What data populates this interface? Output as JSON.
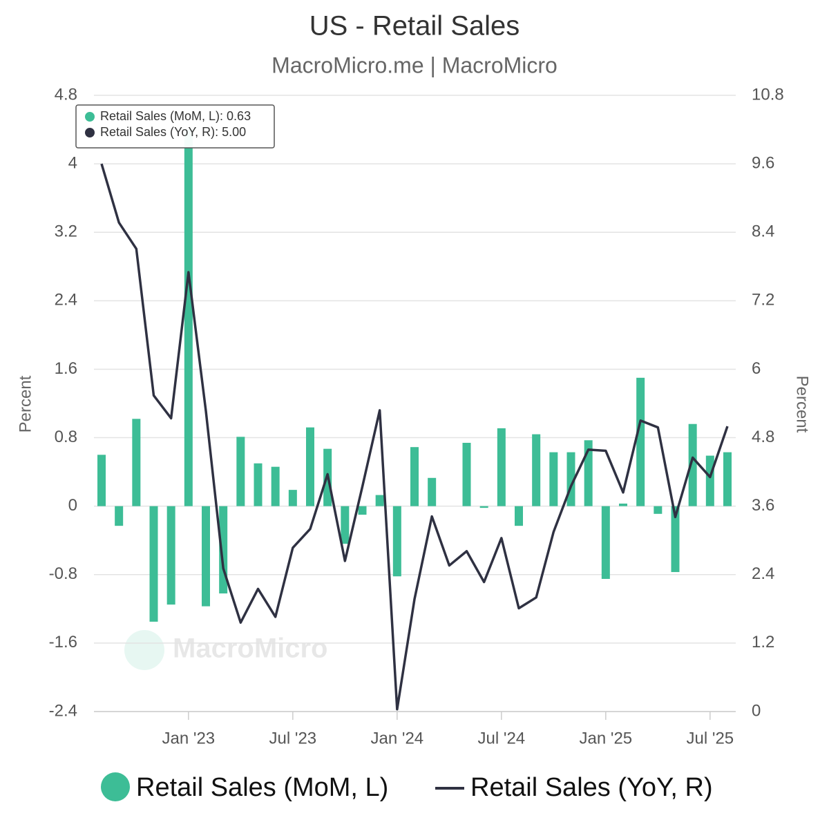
{
  "chart_data": {
    "type": "bar-line",
    "title": "US - Retail Sales",
    "subtitle": "MacroMicro.me | MacroMicro",
    "watermark": "MacroMicro",
    "y_label": "Percent",
    "y2_label": "Percent",
    "x": [
      "2022-08",
      "2022-09",
      "2022-10",
      "2022-11",
      "2022-12",
      "2023-01",
      "2023-02",
      "2023-03",
      "2023-04",
      "2023-05",
      "2023-06",
      "2023-07",
      "2023-08",
      "2023-09",
      "2023-10",
      "2023-11",
      "2023-12",
      "2024-01",
      "2024-02",
      "2024-03",
      "2024-04",
      "2024-05",
      "2024-06",
      "2024-07",
      "2024-08",
      "2024-09",
      "2024-10",
      "2024-11",
      "2024-12",
      "2025-01",
      "2025-02",
      "2025-03",
      "2025-04",
      "2025-05",
      "2025-06",
      "2025-07",
      "2025-08"
    ],
    "xticks": [
      {
        "value": "2023-01",
        "label": "Jan '23"
      },
      {
        "value": "2023-07",
        "label": "Jul '23"
      },
      {
        "value": "2024-01",
        "label": "Jan '24"
      },
      {
        "value": "2024-07",
        "label": "Jul '24"
      },
      {
        "value": "2025-01",
        "label": "Jan '25"
      },
      {
        "value": "2025-07",
        "label": "Jul '25"
      }
    ],
    "ylim": [
      -2.4,
      4.8
    ],
    "yticks": [
      -2.4,
      -1.6,
      -0.8,
      0,
      0.8,
      1.6,
      2.4,
      3.2,
      4,
      4.8
    ],
    "y2lim": [
      0,
      10.8
    ],
    "y2ticks": [
      0,
      1.2,
      2.4,
      3.6,
      4.8,
      6,
      7.2,
      8.4,
      9.6,
      10.8
    ],
    "grid": true,
    "series": [
      {
        "name": "Retail Sales (MoM, L)",
        "type": "bar",
        "color": "#3dbd96",
        "values": [
          0.6,
          -0.23,
          1.02,
          -1.35,
          -1.15,
          4.4,
          -1.17,
          -1.02,
          0.81,
          0.5,
          0.46,
          0.19,
          0.92,
          0.67,
          -0.44,
          -0.1,
          0.13,
          -0.82,
          0.69,
          0.33,
          0.0,
          0.74,
          -0.02,
          0.91,
          -0.23,
          0.84,
          0.63,
          0.63,
          0.77,
          -0.85,
          0.03,
          1.5,
          -0.09,
          -0.77,
          0.96,
          0.59,
          0.63
        ]
      },
      {
        "name": "Retail Sales (YoY, R)",
        "type": "line",
        "axis": "y2",
        "color": "#2f3142",
        "values": [
          9.6,
          8.57,
          8.11,
          5.54,
          5.14,
          7.7,
          5.27,
          2.51,
          1.56,
          2.15,
          1.66,
          2.87,
          3.2,
          4.16,
          2.64,
          3.94,
          5.28,
          0.04,
          1.97,
          3.42,
          2.56,
          2.81,
          2.27,
          3.04,
          1.81,
          2.0,
          3.15,
          3.95,
          4.59,
          4.57,
          3.84,
          5.1,
          4.98,
          3.41,
          4.45,
          4.11,
          5.0
        ]
      }
    ],
    "tooltip": [
      "Retail Sales (MoM, L): 0.63",
      "Retail Sales (YoY, R): 5.00"
    ]
  }
}
